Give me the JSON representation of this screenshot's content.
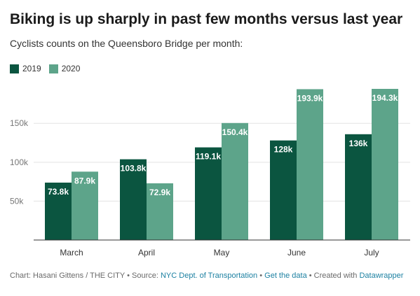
{
  "title": "Biking is up sharply in past few months versus last year",
  "subtitle": "Cyclists counts on the Queensboro Bridge per month:",
  "colors": {
    "series_2019": "#0b5540",
    "series_2020": "#5da48a",
    "link": "#1d81a2"
  },
  "footer": {
    "credit": "Chart: Hasani Gittens / THE CITY",
    "sep1": " • Source: ",
    "source_link": "NYC Dept. of Transportation",
    "sep2": " • ",
    "data_link": "Get the data",
    "sep3": " • Created with ",
    "tool_link": "Datawrapper"
  },
  "chart_data": {
    "type": "bar",
    "categories": [
      "March",
      "April",
      "May",
      "June",
      "July"
    ],
    "series": [
      {
        "name": "2019",
        "values": [
          73.8,
          103.8,
          119.1,
          128,
          136
        ],
        "labels": [
          "73.8k",
          "103.8k",
          "119.1k",
          "128k",
          "136k"
        ]
      },
      {
        "name": "2020",
        "values": [
          87.9,
          72.9,
          150.4,
          193.9,
          194.3
        ],
        "labels": [
          "87.9k",
          "72.9k",
          "150.4k",
          "193.9k",
          "194.3k"
        ]
      }
    ],
    "yticks": [
      50,
      100,
      150
    ],
    "ytick_labels": [
      "50k",
      "100k",
      "150k"
    ],
    "ylim": [
      0,
      194.3
    ],
    "grid": true,
    "legend": "top-left"
  }
}
